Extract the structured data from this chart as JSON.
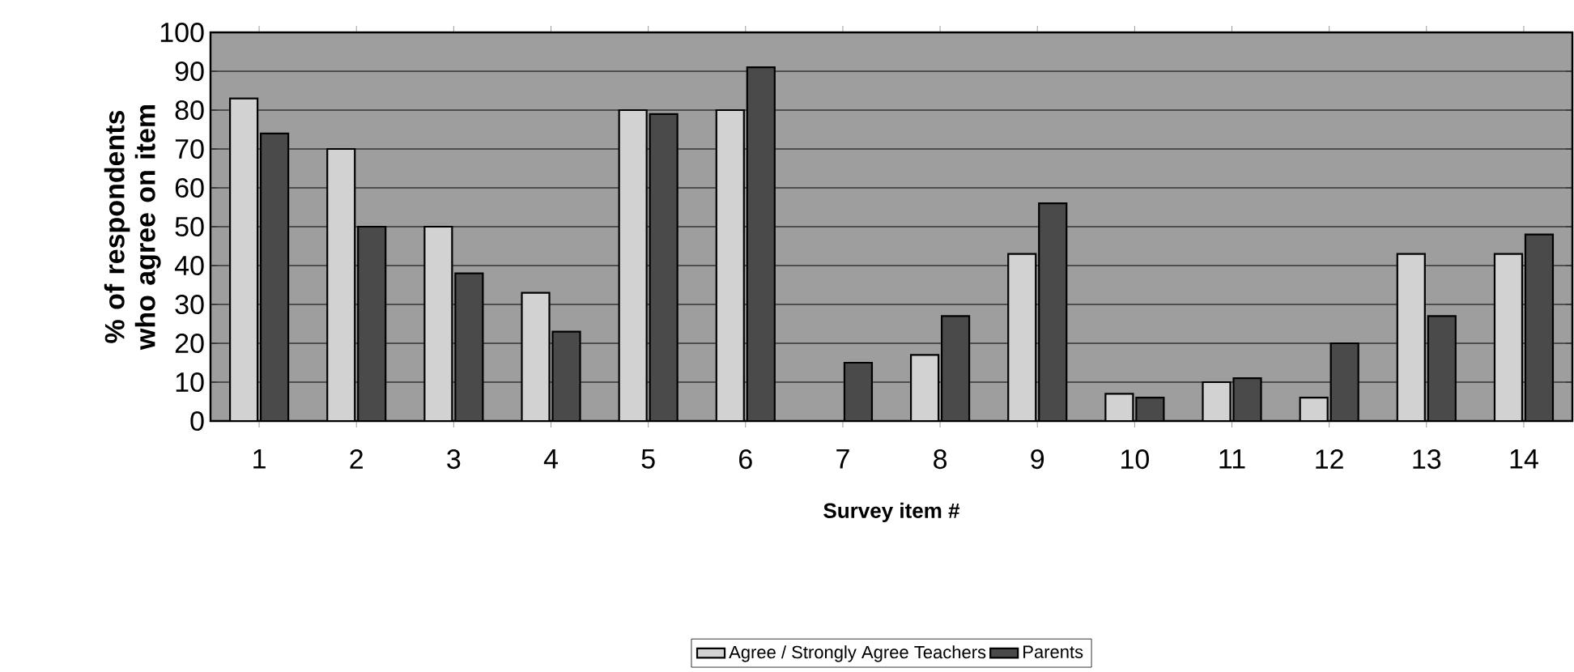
{
  "chart_data": {
    "type": "bar",
    "xlabel": "Survey item #",
    "ylabel": "% of respondents who agree on item",
    "categories": [
      "1",
      "2",
      "3",
      "4",
      "5",
      "6",
      "7",
      "8",
      "9",
      "10",
      "11",
      "12",
      "13",
      "14"
    ],
    "series": [
      {
        "name": "Agree / Strongly Agree Teachers",
        "color": "#d2d2d2",
        "values": [
          83,
          70,
          50,
          33,
          80,
          80,
          0,
          17,
          43,
          7,
          10,
          6,
          43,
          43
        ]
      },
      {
        "name": "Parents",
        "color": "#4a4a4a",
        "values": [
          74,
          50,
          38,
          23,
          79,
          91,
          15,
          27,
          56,
          6,
          11,
          20,
          27,
          48
        ]
      }
    ],
    "ylim": [
      0,
      100
    ],
    "yticks": [
      0,
      10,
      20,
      30,
      40,
      50,
      60,
      70,
      80,
      90,
      100
    ],
    "grid": "y",
    "legend": "bottom"
  }
}
